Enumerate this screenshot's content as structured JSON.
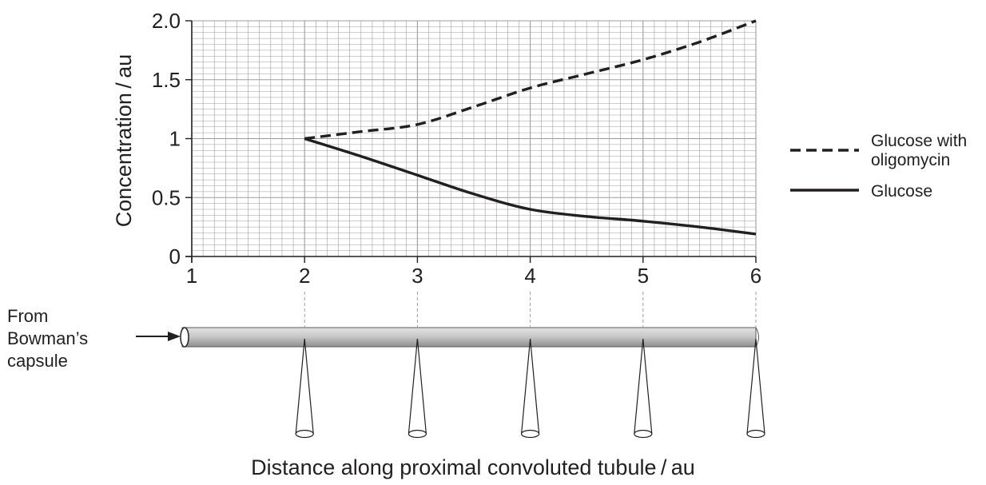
{
  "chart_data": {
    "type": "line",
    "title": "",
    "xlabel": "Distance along proximal convoluted tubule / au",
    "ylabel": "Concentration / au",
    "xlim": [
      1,
      6
    ],
    "ylim": [
      0,
      2
    ],
    "x_ticks": [
      "1",
      "2",
      "3",
      "4",
      "5",
      "6"
    ],
    "y_ticks": [
      "0",
      "0.5",
      "1",
      "1.5",
      "2.0"
    ],
    "grid": true,
    "legend_position": "right",
    "series": [
      {
        "name": "Glucose with oligomycin",
        "style": "dashed",
        "x": [
          2,
          2.5,
          3,
          3.5,
          4,
          4.5,
          5,
          5.5,
          6
        ],
        "y": [
          1.0,
          1.06,
          1.12,
          1.27,
          1.43,
          1.55,
          1.67,
          1.82,
          2.0
        ]
      },
      {
        "name": "Glucose",
        "style": "solid",
        "x": [
          2,
          2.5,
          3,
          3.5,
          4,
          4.5,
          5,
          5.5,
          6
        ],
        "y": [
          1.0,
          0.85,
          0.69,
          0.53,
          0.4,
          0.34,
          0.3,
          0.25,
          0.19
        ]
      }
    ],
    "colors": {
      "line": "#231f20",
      "grid": "#9d9d9d",
      "tubule": "#c8c8c8"
    }
  },
  "diagram": {
    "inlet_label_lines": [
      "From",
      "Bowman’s",
      "capsule"
    ],
    "sampling_points": [
      2,
      3,
      4,
      5,
      6
    ]
  }
}
